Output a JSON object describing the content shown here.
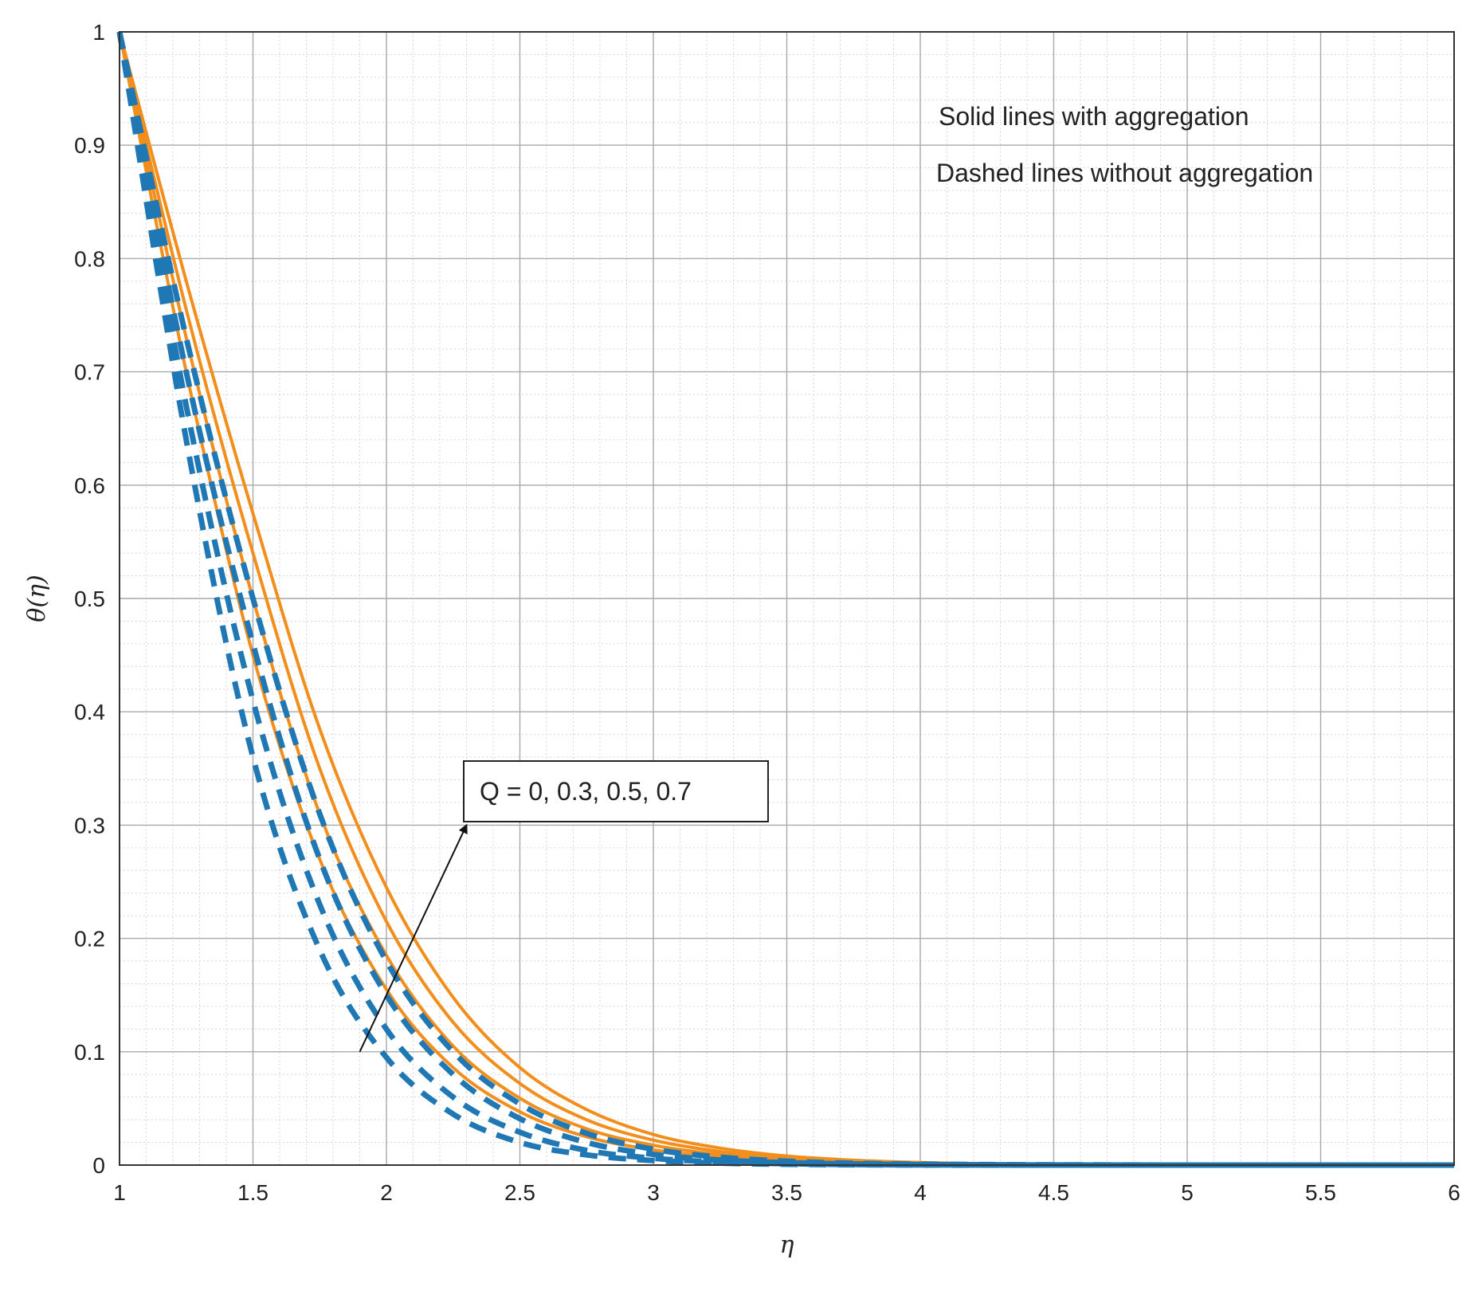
{
  "chart_data": {
    "type": "line",
    "title": "",
    "xlabel": "η",
    "ylabel": "θ(η)",
    "xlim": [
      1,
      6
    ],
    "ylim": [
      0,
      1
    ],
    "grid": true,
    "minor_grid": true,
    "xticks": [
      "1",
      "1.5",
      "2",
      "2.5",
      "3",
      "3.5",
      "4",
      "4.5",
      "5",
      "5.5",
      "6"
    ],
    "yticks": [
      "0",
      "0.1",
      "0.2",
      "0.3",
      "0.4",
      "0.5",
      "0.6",
      "0.7",
      "0.8",
      "0.9",
      "1"
    ],
    "x": [
      1,
      1.25,
      1.5,
      1.75,
      2,
      2.25,
      2.5,
      2.75,
      3,
      3.25,
      3.5,
      3.75,
      4,
      4.25,
      4.5,
      4.75,
      5,
      5.25,
      5.5,
      5.75,
      6
    ],
    "series": [
      {
        "style": "solid",
        "color": "#f28e1c",
        "values": [
          1,
          0.7,
          0.45,
          0.27,
          0.155,
          0.086,
          0.047,
          0.025,
          0.0135,
          0.0072,
          0.0038,
          0.002,
          0.001,
          0.0005,
          0.0003,
          0.0002,
          0.0001,
          0,
          0,
          0,
          0
        ]
      },
      {
        "style": "solid",
        "color": "#f28e1c",
        "values": [
          1,
          0.73,
          0.5,
          0.31,
          0.185,
          0.105,
          0.059,
          0.032,
          0.0175,
          0.0094,
          0.005,
          0.0026,
          0.0014,
          0.0007,
          0.0004,
          0.0002,
          0.0001,
          0,
          0,
          0,
          0
        ]
      },
      {
        "style": "solid",
        "color": "#f28e1c",
        "values": [
          1,
          0.755,
          0.54,
          0.35,
          0.215,
          0.126,
          0.072,
          0.04,
          0.022,
          0.012,
          0.0065,
          0.0034,
          0.0018,
          0.001,
          0.0005,
          0.0003,
          0.0001,
          0,
          0,
          0,
          0
        ]
      },
      {
        "style": "solid",
        "color": "#f28e1c",
        "values": [
          1,
          0.78,
          0.575,
          0.385,
          0.245,
          0.148,
          0.086,
          0.049,
          0.027,
          0.015,
          0.008,
          0.0043,
          0.0023,
          0.0012,
          0.0006,
          0.0003,
          0.0002,
          0,
          0,
          0,
          0
        ]
      },
      {
        "style": "dashed",
        "color": "#1f77b4",
        "values": [
          1,
          0.64,
          0.36,
          0.19,
          0.095,
          0.045,
          0.02,
          0.009,
          0.004,
          0.0017,
          0.0007,
          0.0003,
          0.0001,
          0,
          0,
          0,
          0,
          0,
          0,
          0,
          0
        ]
      },
      {
        "style": "dashed",
        "color": "#1f77b4",
        "values": [
          1,
          0.67,
          0.41,
          0.23,
          0.12,
          0.06,
          0.029,
          0.013,
          0.006,
          0.0027,
          0.0012,
          0.0005,
          0.0002,
          0.0001,
          0,
          0,
          0,
          0,
          0,
          0,
          0
        ]
      },
      {
        "style": "dashed",
        "color": "#1f77b4",
        "values": [
          1,
          0.7,
          0.46,
          0.27,
          0.15,
          0.08,
          0.041,
          0.02,
          0.0095,
          0.0045,
          0.0021,
          0.001,
          0.0004,
          0.0002,
          0.0001,
          0,
          0,
          0,
          0,
          0,
          0
        ]
      },
      {
        "style": "dashed",
        "color": "#1f77b4",
        "values": [
          1,
          0.73,
          0.5,
          0.31,
          0.18,
          0.1,
          0.054,
          0.028,
          0.014,
          0.007,
          0.0034,
          0.0016,
          0.0008,
          0.0004,
          0.0002,
          0.0001,
          0,
          0,
          0,
          0,
          0
        ]
      }
    ],
    "annotations": {
      "note_solid": "Solid lines with aggregation",
      "note_dashed": "Dashed lines without aggregation",
      "param_box": "Q = 0, 0.3, 0.5, 0.7",
      "arrow_from": [
        1.9,
        0.1
      ],
      "arrow_to": [
        2.3,
        0.3
      ]
    }
  }
}
